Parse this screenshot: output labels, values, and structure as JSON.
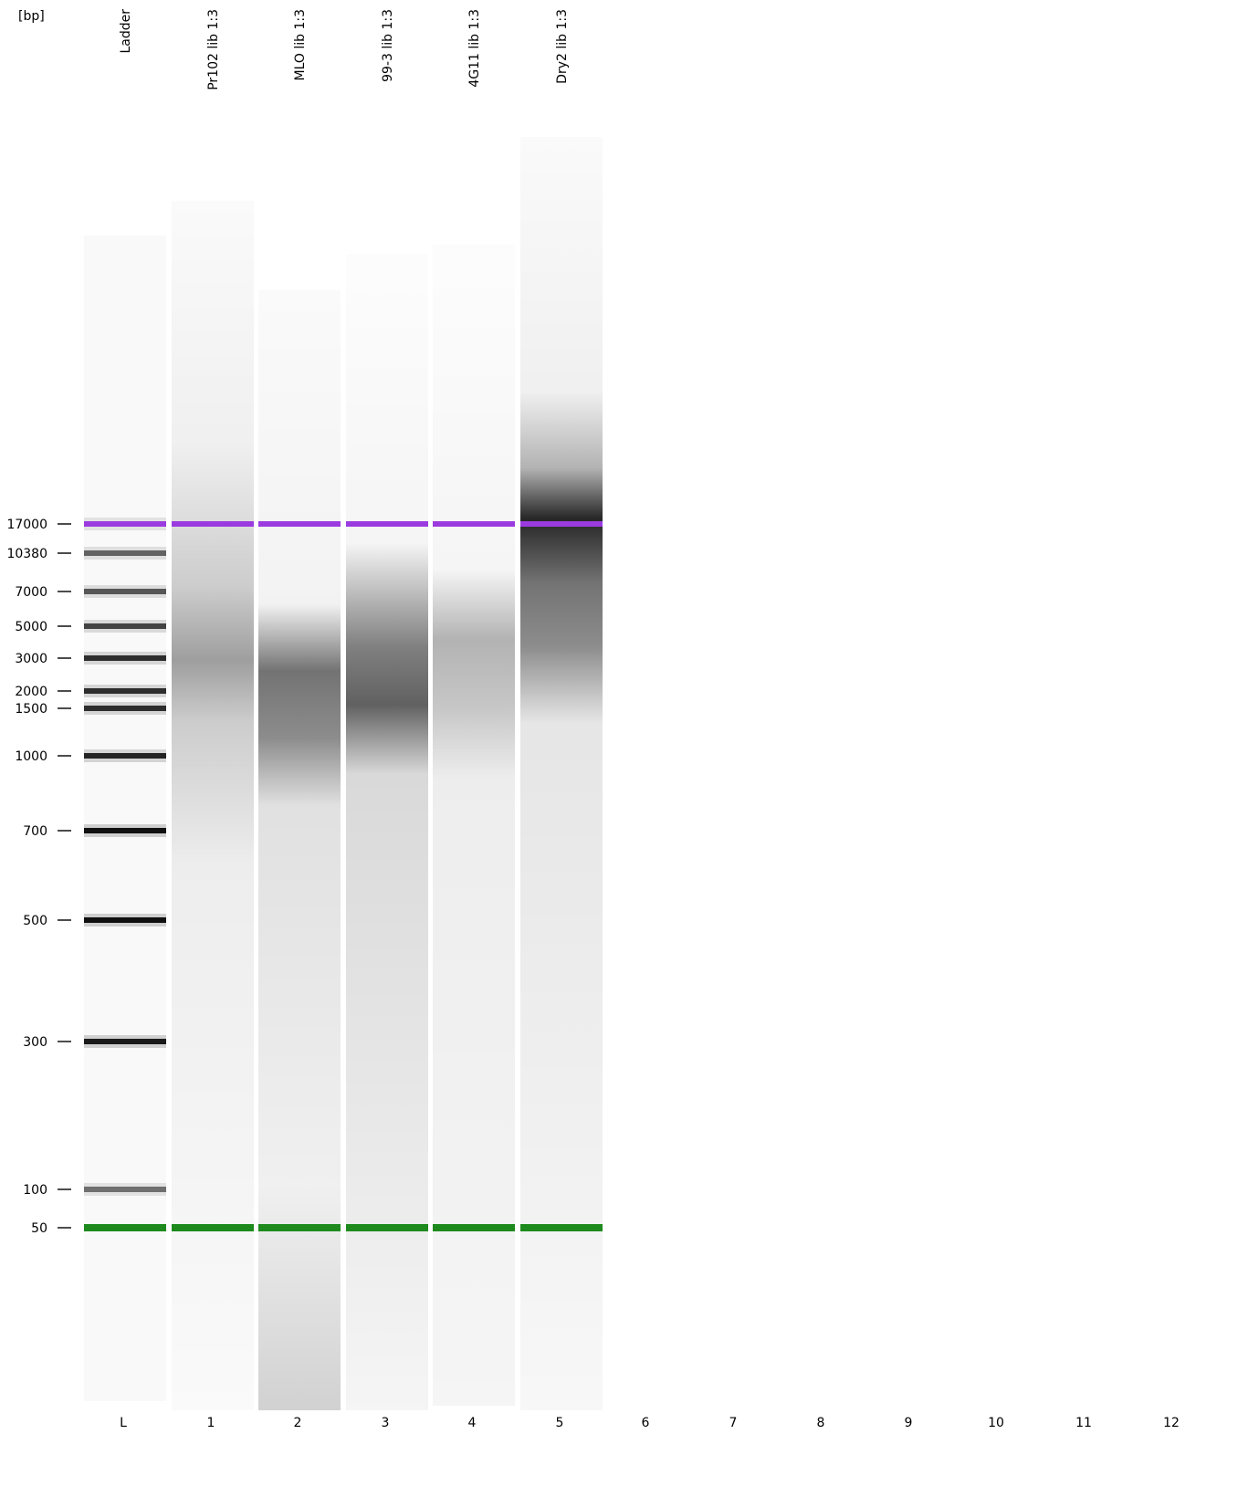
{
  "unit_label": "[bp]",
  "size_marks": [
    17000,
    10380,
    7000,
    5000,
    3000,
    2000,
    1500,
    1000,
    700,
    500,
    300,
    100,
    50
  ],
  "colors": {
    "upper_marker": "#9b3bdf",
    "lower_marker": "#1e8a1e",
    "band": "#101010"
  },
  "lanes": [
    {
      "id": "L",
      "name": "Ladder",
      "type": "ladder"
    },
    {
      "id": "1",
      "name": "Pr102 lib 1:3",
      "type": "smear"
    },
    {
      "id": "2",
      "name": "MLO lib 1:3",
      "type": "smear"
    },
    {
      "id": "3",
      "name": "99-3 lib 1:3",
      "type": "smear"
    },
    {
      "id": "4",
      "name": "4G11 lib 1:3",
      "type": "smear"
    },
    {
      "id": "5",
      "name": "Dry2 lib 1:3",
      "type": "smear"
    }
  ],
  "empty_lanes": [
    "6",
    "7",
    "8",
    "9",
    "10",
    "11",
    "12"
  ],
  "ladder_bands": [
    {
      "size": 17000,
      "intensity": 0.55
    },
    {
      "size": 10380,
      "intensity": 0.6
    },
    {
      "size": 7000,
      "intensity": 0.65
    },
    {
      "size": 5000,
      "intensity": 0.75
    },
    {
      "size": 3000,
      "intensity": 0.85
    },
    {
      "size": 2000,
      "intensity": 0.85
    },
    {
      "size": 1500,
      "intensity": 0.85
    },
    {
      "size": 1000,
      "intensity": 0.9
    },
    {
      "size": 700,
      "intensity": 1.0
    },
    {
      "size": 500,
      "intensity": 1.0
    },
    {
      "size": 300,
      "intensity": 0.95
    },
    {
      "size": 100,
      "intensity": 0.55
    }
  ],
  "markers": {
    "upper": 17000,
    "lower": 50
  }
}
